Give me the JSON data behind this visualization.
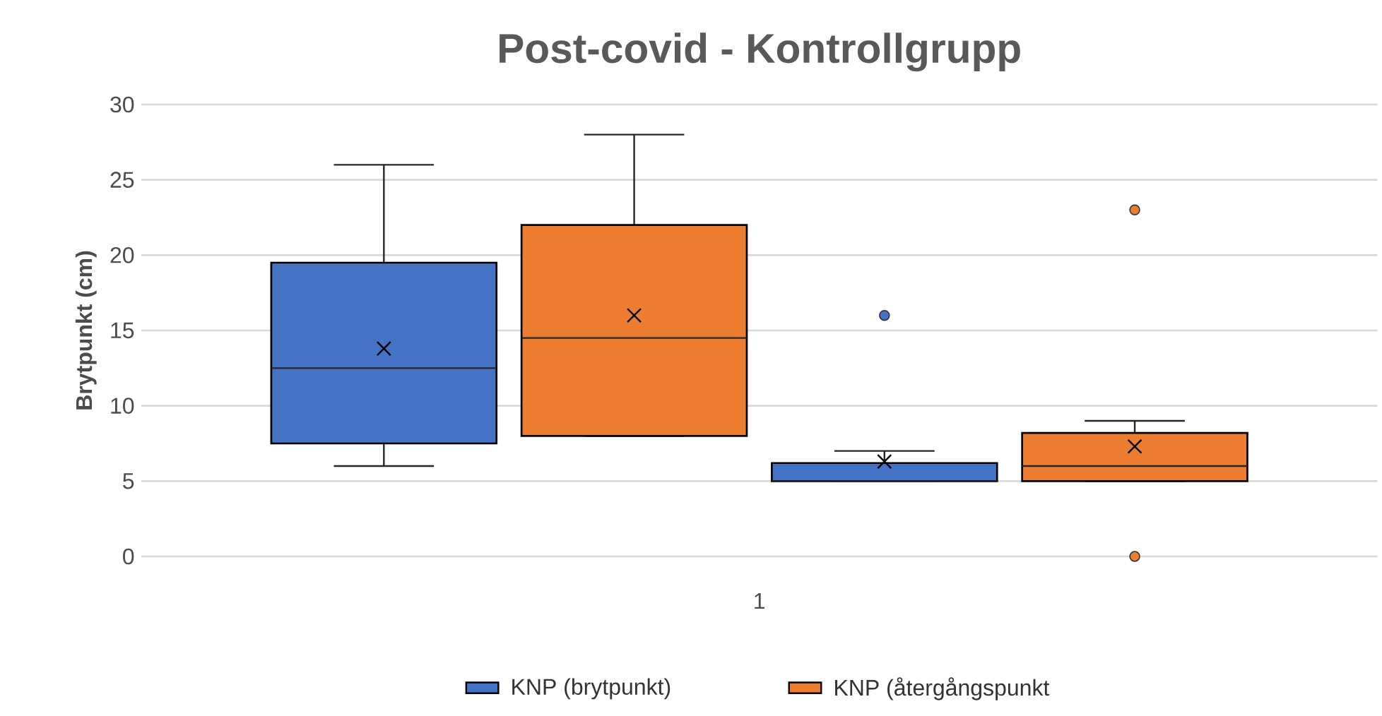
{
  "chart_data": {
    "type": "box",
    "title": "Post-covid - Kontrollgrupp",
    "ylabel": "Brytpunkt (cm)",
    "categories": [
      "1"
    ],
    "series": [
      {
        "name": "KNP (brytpunkt)",
        "color": "#4472c4",
        "boxes": [
          {
            "low": 6,
            "q1": 7.5,
            "median": 12.5,
            "q3": 19.5,
            "high": 26,
            "mean": 13.8
          }
        ]
      },
      {
        "name": "KNP (återgångspunkt",
        "color": "#ed7d31",
        "boxes": [
          {
            "low": 8,
            "q1": 8,
            "median": 14.5,
            "q3": 22,
            "high": 28,
            "mean": 16
          }
        ]
      },
      {
        "color": "#4472c4",
        "boxes": [
          {
            "low": 5,
            "q1": 5,
            "median": 5,
            "q3": 6.2,
            "high": 7,
            "mean": 6.3,
            "outliers": [
              16
            ]
          }
        ]
      },
      {
        "color": "#ed7d31",
        "boxes": [
          {
            "low": 5,
            "q1": 5,
            "median": 6,
            "q3": 8.2,
            "high": 9,
            "mean": 7.3,
            "outliers": [
              23,
              0
            ]
          }
        ]
      }
    ],
    "ylim": [
      0,
      30
    ],
    "yticks": [
      0,
      5,
      10,
      15,
      20,
      25,
      30
    ],
    "grid": "y",
    "legend": "bottom",
    "marker": "circle"
  }
}
